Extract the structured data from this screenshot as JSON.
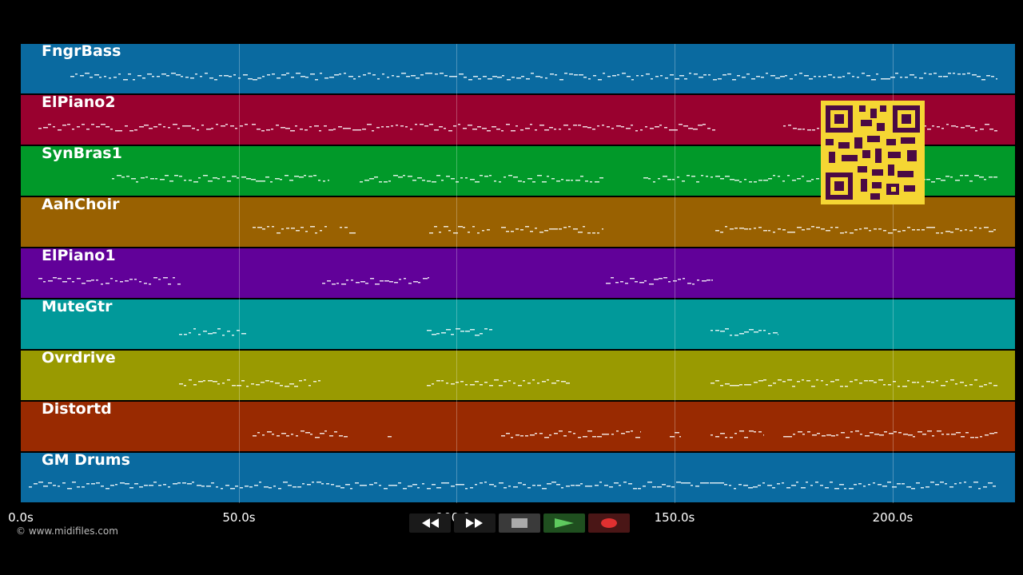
{
  "tracks": [
    {
      "name": "FngrBass",
      "color": "#0a6aa0"
    },
    {
      "name": "ElPiano2",
      "color": "#99012f"
    },
    {
      "name": "SynBras1",
      "color": "#019929"
    },
    {
      "name": "AahChoir",
      "color": "#996101"
    },
    {
      "name": "ElPiano1",
      "color": "#610199"
    },
    {
      "name": "MuteGtr",
      "color": "#01999a"
    },
    {
      "name": "Ovrdrive",
      "color": "#999a01"
    },
    {
      "name": "Distortd",
      "color": "#992a01"
    },
    {
      "name": "GM Drums",
      "color": "#0a6aa0"
    }
  ],
  "timeline": {
    "ticks": [
      "0.0s",
      "50.0s",
      "100.0s",
      "150.0s",
      "200.0s"
    ]
  },
  "copyright": "© www.midifiles.com",
  "controls": {
    "rewind_icon": "rewind-icon",
    "forward_icon": "fast-forward-icon",
    "stop_icon": "stop-icon",
    "play_icon": "play-icon",
    "record_icon": "record-icon",
    "colors": {
      "rewind": "#1a1a1a",
      "forward": "#1a1a1a",
      "stop": "#3a3a3a",
      "play": "#1f4f1f",
      "record": "#4a1616"
    }
  },
  "qr_icon": "qr-code-icon"
}
